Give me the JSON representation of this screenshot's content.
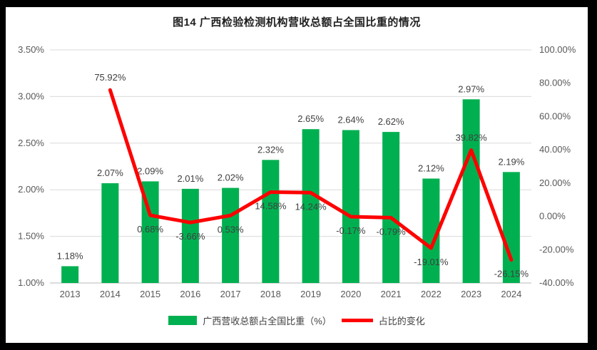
{
  "figure": {
    "title": "图14 广西检验检测机构营收总额占全国比重的情况"
  },
  "chart_data": {
    "type": "bar+line",
    "title": "图14 广西检验检测机构营收总额占全国比重的情况",
    "categories": [
      "2013",
      "2014",
      "2015",
      "2016",
      "2017",
      "2018",
      "2019",
      "2020",
      "2021",
      "2022",
      "2023",
      "2024"
    ],
    "series": [
      {
        "name": "广西营收总额占全国比重（%）",
        "type": "bar",
        "axis": "left",
        "color": "#00B050",
        "values": [
          1.18,
          2.07,
          2.09,
          2.01,
          2.02,
          2.32,
          2.65,
          2.64,
          2.62,
          2.12,
          2.97,
          2.19
        ],
        "labels": [
          "1.18%",
          "2.07%",
          "2.09%",
          "2.01%",
          "2.02%",
          "2.32%",
          "2.65%",
          "2.64%",
          "2.62%",
          "2.12%",
          "2.97%",
          "2.19%"
        ]
      },
      {
        "name": "占比的变化",
        "type": "line",
        "axis": "right",
        "color": "#FF0000",
        "values": [
          null,
          75.92,
          0.68,
          -3.66,
          0.53,
          14.58,
          14.24,
          -0.17,
          -0.79,
          -19.01,
          39.82,
          -26.15
        ],
        "labels": [
          null,
          "75.92%",
          "0.68%",
          "-3.66%",
          "0.53%",
          "14.58%",
          "14.24%",
          "-0.17%",
          "-0.79%",
          "-19.01%",
          "39.82%",
          "-26.15%"
        ]
      }
    ],
    "left_axis": {
      "min": 1.0,
      "max": 3.5,
      "ticks": [
        "1.00%",
        "1.50%",
        "2.00%",
        "2.50%",
        "3.00%",
        "3.50%"
      ]
    },
    "right_axis": {
      "min": -40,
      "max": 100,
      "ticks": [
        "-40.00%",
        "-20.00%",
        "0.00%",
        "20.00%",
        "40.00%",
        "60.00%",
        "80.00%",
        "100.00%"
      ]
    },
    "grid": true,
    "legend_position": "bottom",
    "colors": {
      "gridline": "#D9D9D9",
      "axis_line": "#C6C6C6",
      "tick_text": "#595959",
      "data_label_text": "#404040",
      "frame": "#000000"
    }
  }
}
